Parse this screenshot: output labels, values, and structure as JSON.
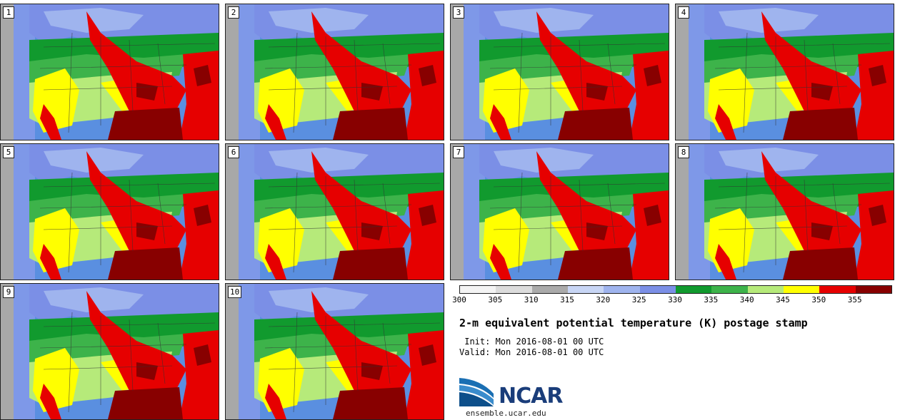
{
  "panels": [
    {
      "label": "1"
    },
    {
      "label": "2"
    },
    {
      "label": "3"
    },
    {
      "label": "4"
    },
    {
      "label": "5"
    },
    {
      "label": "6"
    },
    {
      "label": "7"
    },
    {
      "label": "8"
    },
    {
      "label": "9"
    },
    {
      "label": "10"
    }
  ],
  "colorbar": {
    "ticks": [
      "300",
      "305",
      "310",
      "315",
      "320",
      "325",
      "330",
      "335",
      "340",
      "345",
      "350",
      "355"
    ],
    "colors": [
      "#f4f4f4",
      "#dcdcdc",
      "#aaaaaa",
      "#c8d6f5",
      "#9fb4ee",
      "#7b8fe6",
      "#119a2e",
      "#3db34a",
      "#b6ea7a",
      "#ffff00",
      "#e60000",
      "#880000"
    ]
  },
  "title": "2-m equivalent potential temperature (K) postage stamp",
  "init_line": " Init: Mon 2016-08-01 00 UTC",
  "valid_line": "Valid: Mon 2016-08-01 00 UTC",
  "logo_text": "NCAR",
  "site": "ensemble.ucar.edu"
}
